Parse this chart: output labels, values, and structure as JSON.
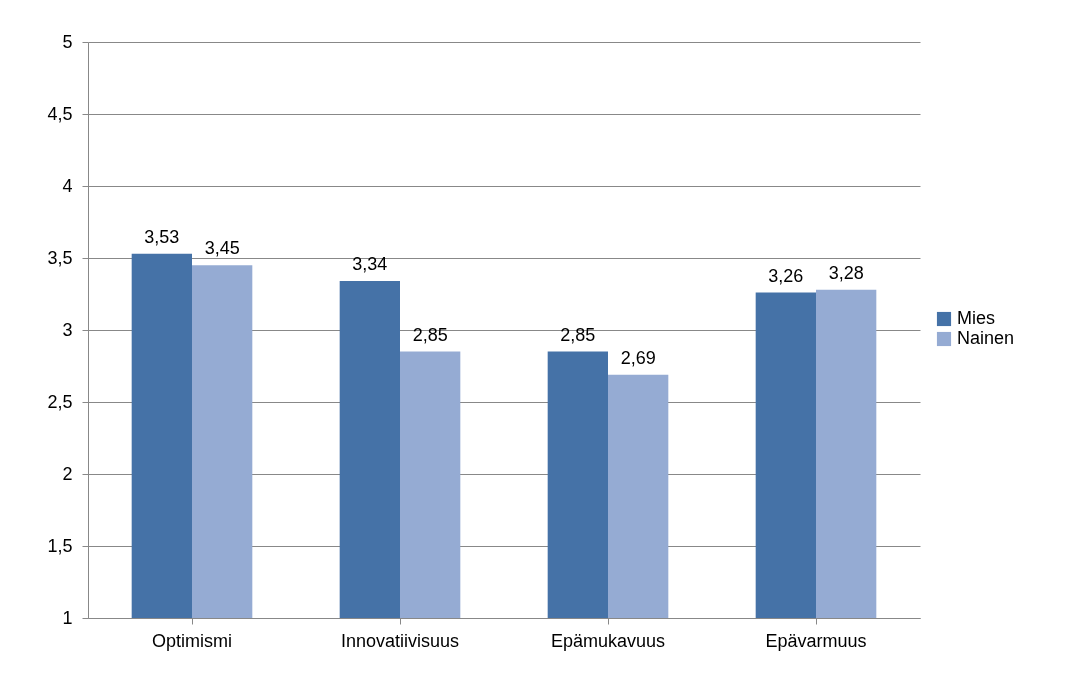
{
  "chart_data": {
    "type": "bar",
    "categories": [
      "Optimismi",
      "Innovatiivisuus",
      "Epämukavuus",
      "Epävarmuus"
    ],
    "series": [
      {
        "name": "Mies",
        "color": "#4572a7",
        "values": [
          3.53,
          3.34,
          2.85,
          3.26
        ],
        "value_labels": [
          "3,53",
          "3,34",
          "2,85",
          "3,26"
        ]
      },
      {
        "name": "Nainen",
        "color": "#95abd3",
        "values": [
          3.45,
          2.85,
          2.69,
          3.28
        ],
        "value_labels": [
          "3,45",
          "2,85",
          "2,69",
          "3,28"
        ]
      }
    ],
    "ylim": [
      1,
      5
    ],
    "yticks": [
      1,
      {
        "value": 1.5,
        "label": "1,5"
      },
      2,
      {
        "value": 2.5,
        "label": "2,5"
      },
      3,
      {
        "value": 3.5,
        "label": "3,5"
      },
      4,
      {
        "value": 4.5,
        "label": "4,5"
      },
      5
    ],
    "grid": "y",
    "legend": "right"
  }
}
